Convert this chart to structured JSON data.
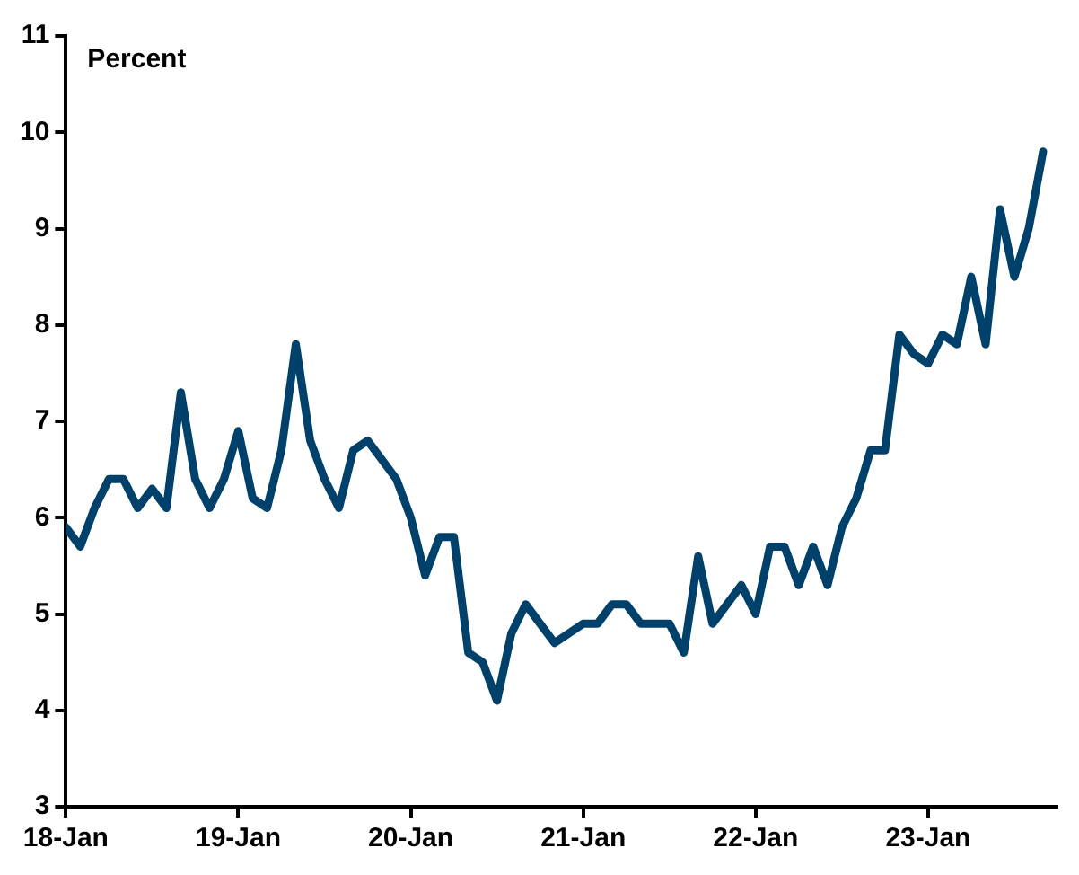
{
  "chart_data": {
    "type": "line",
    "ylabel": "Percent",
    "x": [
      "2018-01",
      "2018-02",
      "2018-03",
      "2018-04",
      "2018-05",
      "2018-06",
      "2018-07",
      "2018-08",
      "2018-09",
      "2018-10",
      "2018-11",
      "2018-12",
      "2019-01",
      "2019-02",
      "2019-03",
      "2019-04",
      "2019-05",
      "2019-06",
      "2019-07",
      "2019-08",
      "2019-09",
      "2019-10",
      "2019-11",
      "2019-12",
      "2020-01",
      "2020-02",
      "2020-03",
      "2020-04",
      "2020-05",
      "2020-06",
      "2020-07",
      "2020-08",
      "2020-09",
      "2020-10",
      "2020-11",
      "2020-12",
      "2021-01",
      "2021-02",
      "2021-03",
      "2021-04",
      "2021-05",
      "2021-06",
      "2021-07",
      "2021-08",
      "2021-09",
      "2021-10",
      "2021-11",
      "2021-12",
      "2022-01",
      "2022-02",
      "2022-03",
      "2022-04",
      "2022-05",
      "2022-06",
      "2022-07",
      "2022-08",
      "2022-09",
      "2022-10",
      "2022-11",
      "2022-12",
      "2023-01",
      "2023-02",
      "2023-03",
      "2023-04",
      "2023-05",
      "2023-06",
      "2023-07",
      "2023-08",
      "2023-09"
    ],
    "series": [
      {
        "color": "#00416b",
        "values": [
          5.9,
          5.7,
          6.1,
          6.4,
          6.4,
          6.1,
          6.3,
          6.1,
          7.3,
          6.4,
          6.1,
          6.4,
          6.9,
          6.2,
          6.1,
          6.7,
          7.8,
          6.8,
          6.4,
          6.1,
          6.7,
          6.8,
          6.6,
          6.4,
          6.0,
          5.4,
          5.8,
          5.8,
          4.6,
          4.5,
          4.1,
          4.8,
          5.1,
          4.9,
          4.7,
          4.8,
          4.9,
          4.9,
          5.1,
          5.1,
          4.9,
          4.9,
          4.9,
          4.6,
          5.6,
          4.9,
          5.1,
          5.3,
          5.0,
          5.7,
          5.7,
          5.3,
          5.7,
          5.3,
          5.9,
          6.2,
          6.7,
          6.7,
          7.9,
          7.7,
          7.6,
          7.9,
          7.8,
          8.5,
          7.8,
          9.2,
          8.5,
          9.0,
          9.8
        ]
      }
    ],
    "xlim": [
      "2018-01",
      "2023-10"
    ],
    "xticks": [
      {
        "value": "2018-01",
        "label": "18-Jan"
      },
      {
        "value": "2019-01",
        "label": "19-Jan"
      },
      {
        "value": "2020-01",
        "label": "20-Jan"
      },
      {
        "value": "2021-01",
        "label": "21-Jan"
      },
      {
        "value": "2022-01",
        "label": "22-Jan"
      },
      {
        "value": "2023-01",
        "label": "23-Jan"
      }
    ],
    "ylim": [
      3,
      11
    ],
    "yticks": [
      3,
      4,
      5,
      6,
      7,
      8,
      9,
      10,
      11
    ],
    "grid": false,
    "legend": false,
    "marker": "none",
    "line_style": "solid"
  }
}
